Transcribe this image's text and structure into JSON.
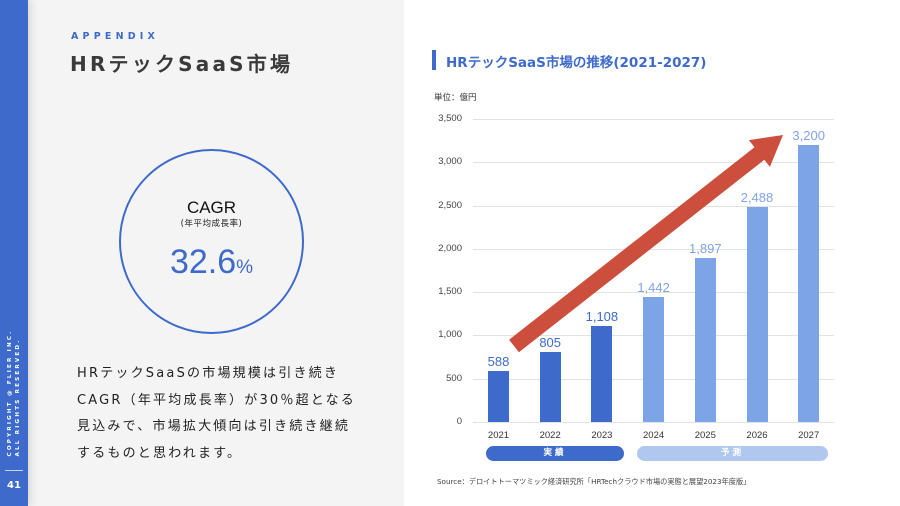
{
  "sidebar": {
    "copyright_line1": "COPYRIGHT @ FLIER INC.",
    "copyright_line2": "ALL RIGHTS RESERVED.",
    "page_number": "41",
    "color": "#3d6acb"
  },
  "header": {
    "eyebrow": "APPENDIX",
    "title": "HRテックSaaS市場"
  },
  "cagr": {
    "label": "CAGR",
    "sublabel": "(年平均成長率)",
    "value": "32.6",
    "unit": "%"
  },
  "description": {
    "lines": [
      "HRテックSaaSの市場規模は引き続き",
      "CAGR（年平均成長率）が30％超となる",
      "見込みで、市場拡大傾向は引き続き継続",
      "するものと思われます。"
    ]
  },
  "chart": {
    "unit_label": "単位：億円",
    "source": "Source：デロイトトーマツミック経済研究所「HRTechクラウド市場の実態と展望2023年度版」",
    "actual_label": "実績",
    "forecast_label": "予測",
    "y_ticks": [
      "3,500",
      "3,000",
      "2,500",
      "2,000",
      "1,500",
      "1,000",
      "500",
      "0"
    ],
    "bars": [
      {
        "year": "2021",
        "value_label": "588"
      },
      {
        "year": "2022",
        "value_label": "805"
      },
      {
        "year": "2023",
        "value_label": "1,108"
      },
      {
        "year": "2024",
        "value_label": "1,442"
      },
      {
        "year": "2025",
        "value_label": "1,897"
      },
      {
        "year": "2026",
        "value_label": "2,488"
      },
      {
        "year": "2027",
        "value_label": "3,200"
      }
    ],
    "colors": {
      "actual": "#3d6acb",
      "forecast": "#7ea4e8",
      "forecast_pill": "#b0c8f0",
      "trend_arrow": "#cc4e3c"
    }
  },
  "chart_data": {
    "type": "bar",
    "title": "HRテックSaaS市場の推移(2021-2027)",
    "xlabel": "",
    "ylabel": "単位：億円",
    "categories": [
      "2021",
      "2022",
      "2023",
      "2024",
      "2025",
      "2026",
      "2027"
    ],
    "values": [
      588,
      805,
      1108,
      1442,
      1897,
      2488,
      3200
    ],
    "series": [
      {
        "name": "実績",
        "categories": [
          "2021",
          "2022",
          "2023"
        ],
        "values": [
          588,
          805,
          1108
        ]
      },
      {
        "name": "予測",
        "categories": [
          "2024",
          "2025",
          "2026",
          "2027"
        ],
        "values": [
          1442,
          1897,
          2488,
          3200
        ]
      }
    ],
    "ylim": [
      0,
      3500
    ],
    "yticks": [
      0,
      500,
      1000,
      1500,
      2000,
      2500,
      3000,
      3500
    ],
    "grid": true,
    "data_labels": true,
    "annotations": [
      "upward trend arrow (red) from 2021 to 2027"
    ],
    "source": "Source：デロイトトーマツミック経済研究所「HRTechクラウド市場の実態と展望2023年度版」"
  }
}
